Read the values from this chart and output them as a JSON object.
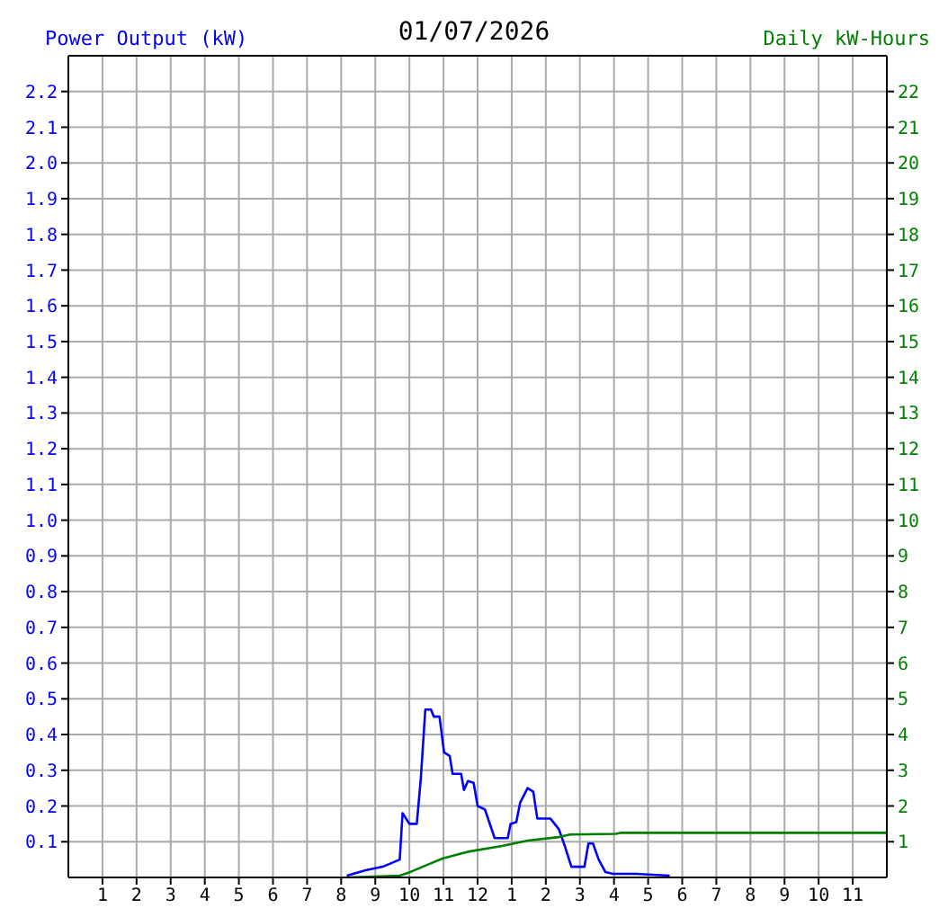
{
  "chart_data": {
    "type": "line",
    "title": "01/07/2026",
    "ylabel": "Power Output (kW)",
    "y2label": "Daily kW-Hours",
    "xlim": [
      "2026-01-07T00:00",
      "2026-01-08T00:00"
    ],
    "xticks": [
      {
        "value": "2026-01-07T01:00",
        "label": "1"
      },
      {
        "value": "2026-01-07T02:00",
        "label": "2"
      },
      {
        "value": "2026-01-07T03:00",
        "label": "3"
      },
      {
        "value": "2026-01-07T04:00",
        "label": "4"
      },
      {
        "value": "2026-01-07T05:00",
        "label": "5"
      },
      {
        "value": "2026-01-07T06:00",
        "label": "6"
      },
      {
        "value": "2026-01-07T07:00",
        "label": "7"
      },
      {
        "value": "2026-01-07T08:00",
        "label": "8"
      },
      {
        "value": "2026-01-07T09:00",
        "label": "9"
      },
      {
        "value": "2026-01-07T10:00",
        "label": "10"
      },
      {
        "value": "2026-01-07T11:00",
        "label": "11"
      },
      {
        "value": "2026-01-07T12:00",
        "label": "12"
      },
      {
        "value": "2026-01-07T13:00",
        "label": "1"
      },
      {
        "value": "2026-01-07T14:00",
        "label": "2"
      },
      {
        "value": "2026-01-07T15:00",
        "label": "3"
      },
      {
        "value": "2026-01-07T16:00",
        "label": "4"
      },
      {
        "value": "2026-01-07T17:00",
        "label": "5"
      },
      {
        "value": "2026-01-07T18:00",
        "label": "6"
      },
      {
        "value": "2026-01-07T19:00",
        "label": "7"
      },
      {
        "value": "2026-01-07T20:00",
        "label": "8"
      },
      {
        "value": "2026-01-07T21:00",
        "label": "9"
      },
      {
        "value": "2026-01-07T22:00",
        "label": "10"
      },
      {
        "value": "2026-01-07T23:00",
        "label": "11"
      }
    ],
    "ylim": [
      0,
      2.3
    ],
    "yticks": [
      0.1,
      0.2,
      0.3,
      0.4,
      0.5,
      0.6,
      0.7,
      0.8,
      0.9,
      {
        "value": 1,
        "label": "1.0"
      },
      1.1,
      1.2,
      1.3,
      1.4,
      1.5,
      1.6,
      1.7,
      1.8,
      1.9,
      {
        "value": 2,
        "label": "2.0"
      },
      2.1,
      2.2
    ],
    "y2lim": [
      0,
      23
    ],
    "y2ticks": [
      1,
      2,
      3,
      4,
      5,
      6,
      7,
      8,
      9,
      10,
      11,
      12,
      13,
      14,
      15,
      16,
      17,
      18,
      19,
      20,
      21,
      22
    ],
    "grid": true,
    "marker": "none",
    "line_style": "solid",
    "series": [
      {
        "color": "#0000ff",
        "x": [
          "2026-01-07T08:10",
          "2026-01-07T08:43",
          "2026-01-07T09:13",
          "2026-01-07T09:28",
          "2026-01-07T09:43",
          "2026-01-07T09:48",
          "2026-01-07T10:00",
          "2026-01-07T10:13",
          "2026-01-07T10:20",
          "2026-01-07T10:28",
          "2026-01-07T10:38",
          "2026-01-07T10:43",
          "2026-01-07T10:53",
          "2026-01-07T11:01",
          "2026-01-07T11:11",
          "2026-01-07T11:16",
          "2026-01-07T11:31",
          "2026-01-07T11:36",
          "2026-01-07T11:43",
          "2026-01-07T11:53",
          "2026-01-07T12:00",
          "2026-01-07T12:13",
          "2026-01-07T12:30",
          "2026-01-07T12:53",
          "2026-01-07T12:58",
          "2026-01-07T13:08",
          "2026-01-07T13:15",
          "2026-01-07T13:28",
          "2026-01-07T13:38",
          "2026-01-07T13:45",
          "2026-01-07T14:08",
          "2026-01-07T14:23",
          "2026-01-07T14:33",
          "2026-01-07T14:45",
          "2026-01-07T15:08",
          "2026-01-07T15:15",
          "2026-01-07T15:23",
          "2026-01-07T15:33",
          "2026-01-07T15:45",
          "2026-01-07T15:58",
          "2026-01-07T16:38",
          "2026-01-07T17:38"
        ],
        "values": [
          0.005,
          0.02,
          0.03,
          0.04,
          0.05,
          0.18,
          0.15,
          0.15,
          0.275,
          0.47,
          0.47,
          0.45,
          0.45,
          0.35,
          0.34,
          0.29,
          0.29,
          0.245,
          0.27,
          0.265,
          0.2,
          0.19,
          0.11,
          0.11,
          0.15,
          0.155,
          0.21,
          0.25,
          0.24,
          0.165,
          0.165,
          0.135,
          0.09,
          0.03,
          0.03,
          0.095,
          0.095,
          0.05,
          0.015,
          0.01,
          0.01,
          0.005
        ]
      },
      {
        "color": "#008000",
        "axis": "y2",
        "x": [
          "2026-01-07T08:10",
          "2026-01-07T09:43",
          "2026-01-07T09:58",
          "2026-01-07T10:28",
          "2026-01-07T10:58",
          "2026-01-07T11:43",
          "2026-01-07T12:43",
          "2026-01-07T13:28",
          "2026-01-07T14:23",
          "2026-01-07T14:43",
          "2026-01-07T16:03",
          "2026-01-07T16:13",
          "2026-01-08T00:00"
        ],
        "values": [
          0,
          0.05,
          0.13,
          0.33,
          0.53,
          0.72,
          0.88,
          1.03,
          1.13,
          1.2,
          1.22,
          1.25,
          1.25
        ]
      }
    ]
  }
}
